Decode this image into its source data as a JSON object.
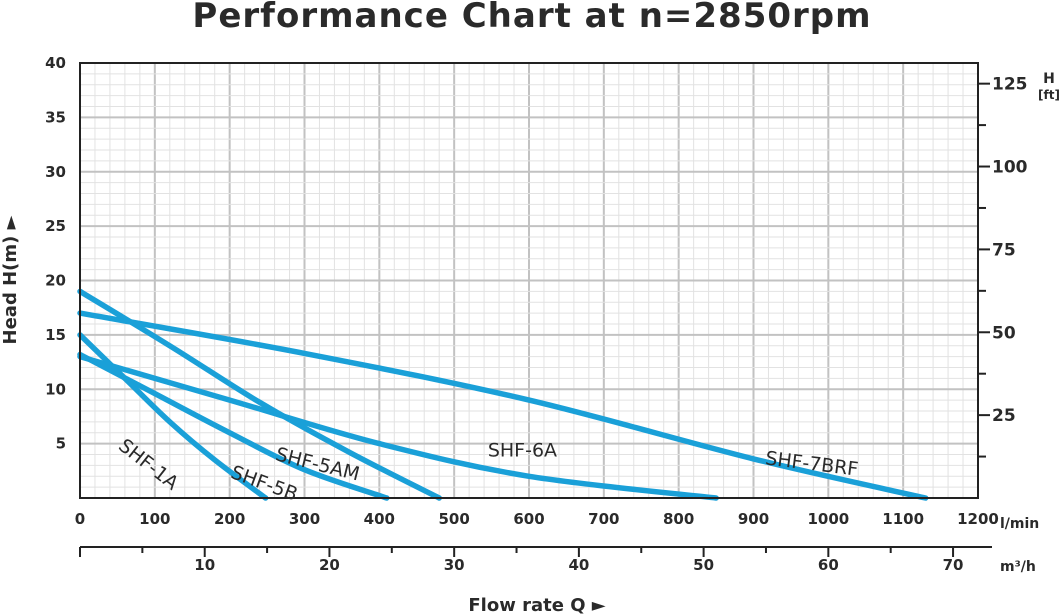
{
  "chart_data": {
    "type": "line",
    "title": "Performance Chart at n=2850rpm",
    "xlabel": "Flow rate Q ►",
    "ylabel": "Head H(m) ►",
    "x_unit": "l/min",
    "x2_unit": "m³/h",
    "y2_label": "H",
    "y2_unit": "[ft]",
    "xlim": [
      0,
      1200
    ],
    "ylim": [
      0,
      40
    ],
    "x_ticks": [
      "0",
      "100",
      "200",
      "300",
      "400",
      "500",
      "600",
      "700",
      "800",
      "900",
      "1000",
      "1100",
      "1200"
    ],
    "x2_ticks": [
      "10",
      "20",
      "30",
      "40",
      "50",
      "60",
      "70"
    ],
    "y_ticks": [
      "5",
      "10",
      "15",
      "20",
      "25",
      "30",
      "35",
      "40"
    ],
    "y2_ticks": [
      "25",
      "50",
      "75",
      "100",
      "125"
    ],
    "grid": true,
    "colors": {
      "curve": "#1aa0d8",
      "grid": "#cccccc",
      "axis": "#222222",
      "text": "#2a2a2a"
    },
    "series": [
      {
        "name": "SHF-1A",
        "x": [
          0,
          60,
          120,
          180,
          248
        ],
        "y": [
          15,
          11,
          7,
          3.5,
          0
        ]
      },
      {
        "name": "SHF-5B",
        "x": [
          0,
          100,
          200,
          300,
          410
        ],
        "y": [
          13.2,
          9.6,
          6,
          2.6,
          0
        ]
      },
      {
        "name": "SHF-5AM",
        "x": [
          0,
          120,
          240,
          360,
          480
        ],
        "y": [
          19,
          14,
          8.8,
          4.2,
          0
        ]
      },
      {
        "name": "SHF-6A",
        "x": [
          0,
          200,
          400,
          600,
          850
        ],
        "y": [
          13,
          9,
          5,
          2,
          0
        ]
      },
      {
        "name": "SHF-7BRF",
        "x": [
          0,
          300,
          600,
          900,
          1130
        ],
        "y": [
          17,
          13.3,
          9,
          3.6,
          0
        ]
      }
    ]
  }
}
